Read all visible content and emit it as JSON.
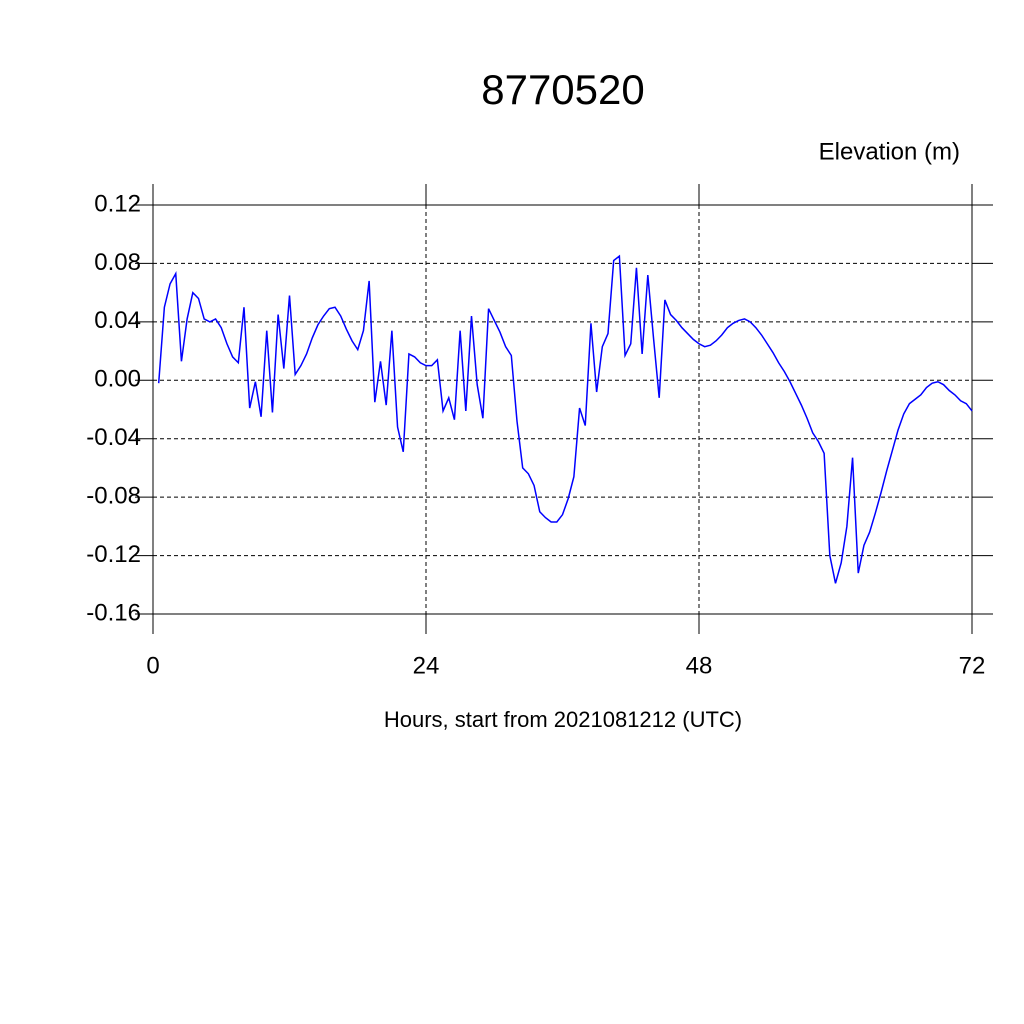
{
  "chart_data": {
    "type": "line",
    "title": "8770520",
    "subtitle": "Elevation (m)",
    "x_label": "Hours, start from 2021081212 (UTC)",
    "xlim": [
      0,
      72
    ],
    "xticks": [
      0,
      24,
      48,
      72
    ],
    "ylim": [
      -0.16,
      0.12
    ],
    "yticks": [
      {
        "value": -0.16,
        "label": "-0.16"
      },
      {
        "value": -0.12,
        "label": "-0.12"
      },
      {
        "value": -0.08,
        "label": "-0.08"
      },
      {
        "value": -0.04,
        "label": "-0.04"
      },
      {
        "value": 0,
        "label": "0.00"
      },
      {
        "value": 0.04,
        "label": "0.04"
      },
      {
        "value": 0.08,
        "label": "0.08"
      },
      {
        "value": 0.12,
        "label": "0.12"
      }
    ],
    "grid": true,
    "x": [
      0.5,
      1,
      1.5,
      2,
      2.5,
      3,
      3.5,
      4,
      4.5,
      5,
      5.5,
      6,
      6.5,
      7,
      7.5,
      8,
      8.5,
      9,
      9.5,
      10,
      10.5,
      11,
      11.5,
      12,
      12.5,
      13,
      13.5,
      14,
      14.5,
      15,
      15.5,
      16,
      16.5,
      17,
      17.5,
      18,
      18.5,
      19,
      19.5,
      20,
      20.5,
      21,
      21.5,
      22,
      22.5,
      23,
      23.5,
      24,
      24.5,
      25,
      25.5,
      26,
      26.5,
      27,
      27.5,
      28,
      28.5,
      29,
      29.5,
      30,
      30.5,
      31,
      31.5,
      32,
      32.5,
      33,
      33.5,
      34,
      34.5,
      35,
      35.5,
      36,
      36.5,
      37,
      37.5,
      38,
      38.5,
      39,
      39.5,
      40,
      40.5,
      41,
      41.5,
      42,
      42.5,
      43,
      43.5,
      44,
      44.5,
      45,
      45.5,
      46,
      46.5,
      47,
      47.5,
      48,
      48.5,
      49,
      49.5,
      50,
      50.5,
      51,
      51.5,
      52,
      52.5,
      53,
      53.5,
      54,
      54.5,
      55,
      55.5,
      56,
      56.5,
      57,
      57.5,
      58,
      58.5,
      59,
      59.5,
      60,
      60.5,
      61,
      61.5,
      62,
      62.5,
      63,
      63.5,
      64,
      64.5,
      65,
      65.5,
      66,
      66.5,
      67,
      67.5,
      68,
      68.5,
      69,
      69.5,
      70,
      70.5,
      71,
      71.5,
      72
    ],
    "series": [
      {
        "color": "#0000ff",
        "values": [
          -0.002,
          0.05,
          0.066,
          0.073,
          0.013,
          0.042,
          0.06,
          0.056,
          0.042,
          0.04,
          0.042,
          0.036,
          0.025,
          0.016,
          0.012,
          0.05,
          -0.019,
          -0.001,
          -0.025,
          0.034,
          -0.022,
          0.045,
          0.008,
          0.058,
          0.004,
          0.01,
          0.018,
          0.029,
          0.038,
          0.044,
          0.049,
          0.05,
          0.044,
          0.035,
          0.027,
          0.021,
          0.034,
          0.068,
          -0.015,
          0.013,
          -0.017,
          0.034,
          -0.032,
          -0.049,
          0.018,
          0.016,
          0.012,
          0.01,
          0.01,
          0.014,
          -0.021,
          -0.012,
          -0.027,
          0.034,
          -0.021,
          0.044,
          -0.003,
          -0.026,
          0.049,
          0.041,
          0.033,
          0.023,
          0.017,
          -0.028,
          -0.06,
          -0.064,
          -0.072,
          -0.09,
          -0.094,
          -0.097,
          -0.097,
          -0.092,
          -0.081,
          -0.066,
          -0.019,
          -0.031,
          0.039,
          -0.008,
          0.023,
          0.032,
          0.082,
          0.085,
          0.017,
          0.025,
          0.077,
          0.018,
          0.072,
          0.029,
          -0.012,
          0.055,
          0.045,
          0.041,
          0.036,
          0.032,
          0.028,
          0.025,
          0.023,
          0.024,
          0.027,
          0.031,
          0.036,
          0.039,
          0.041,
          0.042,
          0.04,
          0.036,
          0.031,
          0.025,
          0.019,
          0.012,
          0.006,
          -0.001,
          -0.009,
          -0.017,
          -0.026,
          -0.036,
          -0.042,
          -0.05,
          -0.12,
          -0.139,
          -0.125,
          -0.1,
          -0.053,
          -0.132,
          -0.113,
          -0.104,
          -0.091,
          -0.077,
          -0.062,
          -0.048,
          -0.034,
          -0.023,
          -0.016,
          -0.013,
          -0.01,
          -0.005,
          -0.002,
          -0.001,
          -0.003,
          -0.007,
          -0.01,
          -0.014,
          -0.016,
          -0.021
        ]
      }
    ]
  }
}
